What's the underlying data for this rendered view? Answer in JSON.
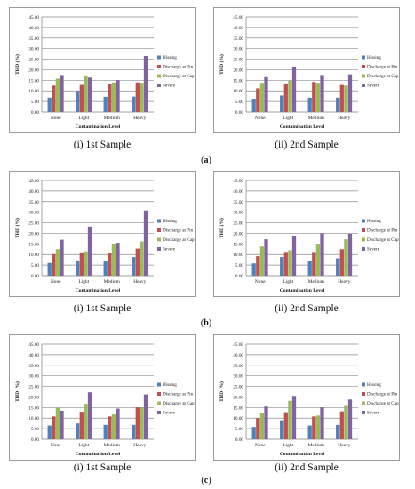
{
  "legend": {
    "labels": [
      "Hissing",
      "Discharge at Pin",
      "Discharge at Cap",
      "Severe"
    ],
    "colors": [
      "#4f81bd",
      "#c0504d",
      "#9bbb59",
      "#8064a2"
    ]
  },
  "rows": [
    {
      "letter": "a",
      "captions": [
        "(i) 1st Sample",
        "(ii) 2nd Sample"
      ]
    },
    {
      "letter": "b",
      "captions": [
        "(i) 1st Sample",
        "(ii) 2nd Sample"
      ]
    },
    {
      "letter": "c",
      "captions": [
        "(i) 1st Sample",
        "(ii) 2nd Sample"
      ]
    }
  ],
  "chart_data": [
    {
      "id": "a-i",
      "type": "bar",
      "ylabel": "THD (%)",
      "xlabel": "Contamination Level",
      "categories": [
        "None",
        "Light",
        "Medium",
        "Heavy"
      ],
      "ylim": [
        0,
        45
      ],
      "yticks": [
        "0.00",
        "5.00",
        "10.00",
        "15.00",
        "20.00",
        "25.00",
        "30.00",
        "35.00",
        "40.00",
        "45.00"
      ],
      "grid": true,
      "legend_position": "right",
      "series": [
        {
          "name": "Hissing",
          "values": [
            6.8,
            10.0,
            7.2,
            7.3
          ]
        },
        {
          "name": "Discharge at Pin",
          "values": [
            12.5,
            12.8,
            13.2,
            14.0
          ]
        },
        {
          "name": "Discharge at Cap",
          "values": [
            15.8,
            17.3,
            14.0,
            13.8
          ]
        },
        {
          "name": "Severe",
          "values": [
            17.5,
            16.3,
            15.0,
            26.5
          ]
        }
      ]
    },
    {
      "id": "a-ii",
      "type": "bar",
      "ylabel": "THD (%)",
      "xlabel": "Contamination Level",
      "categories": [
        "None",
        "Light",
        "Medium",
        "Heavy"
      ],
      "ylim": [
        0,
        45
      ],
      "yticks": [
        "0.00",
        "5.00",
        "10.00",
        "15.00",
        "20.00",
        "25.00",
        "30.00",
        "35.00",
        "40.00",
        "45.00"
      ],
      "grid": true,
      "legend_position": "right",
      "series": [
        {
          "name": "Hissing",
          "values": [
            6.3,
            7.8,
            6.8,
            6.8
          ]
        },
        {
          "name": "Discharge at Pin",
          "values": [
            11.2,
            13.5,
            14.2,
            12.8
          ]
        },
        {
          "name": "Discharge at Cap",
          "values": [
            13.8,
            14.8,
            13.8,
            12.5
          ]
        },
        {
          "name": "Severe",
          "values": [
            16.5,
            21.5,
            17.5,
            17.8
          ]
        }
      ]
    },
    {
      "id": "b-i",
      "type": "bar",
      "ylabel": "THD (%)",
      "xlabel": "Contamination Level",
      "categories": [
        "None",
        "Light",
        "Medium",
        "Heavy"
      ],
      "ylim": [
        0,
        45
      ],
      "yticks": [
        "0.00",
        "5.00",
        "10.00",
        "15.00",
        "20.00",
        "25.00",
        "30.00",
        "35.00",
        "40.00",
        "45.00"
      ],
      "grid": true,
      "legend_position": "right",
      "series": [
        {
          "name": "Hissing",
          "values": [
            6.0,
            7.2,
            6.8,
            8.8
          ]
        },
        {
          "name": "Discharge at Pin",
          "values": [
            10.2,
            11.0,
            10.8,
            12.8
          ]
        },
        {
          "name": "Discharge at Cap",
          "values": [
            12.5,
            11.5,
            14.8,
            16.2
          ]
        },
        {
          "name": "Severe",
          "values": [
            17.0,
            23.2,
            15.5,
            30.8
          ]
        }
      ]
    },
    {
      "id": "b-ii",
      "type": "bar",
      "ylabel": "THD (%)",
      "xlabel": "Contamination Level",
      "categories": [
        "None",
        "Light",
        "Medium",
        "Heavy"
      ],
      "ylim": [
        0,
        45
      ],
      "yticks": [
        "0.00",
        "5.00",
        "10.00",
        "15.00",
        "20.00",
        "25.00",
        "30.00",
        "35.00",
        "40.00",
        "45.00"
      ],
      "grid": true,
      "legend_position": "right",
      "series": [
        {
          "name": "Hissing",
          "values": [
            5.8,
            8.8,
            6.8,
            8.2
          ]
        },
        {
          "name": "Discharge at Pin",
          "values": [
            9.2,
            11.2,
            11.2,
            12.5
          ]
        },
        {
          "name": "Discharge at Cap",
          "values": [
            13.8,
            12.0,
            15.0,
            17.2
          ]
        },
        {
          "name": "Severe",
          "values": [
            17.2,
            18.8,
            20.0,
            19.8
          ]
        }
      ]
    },
    {
      "id": "c-i",
      "type": "bar",
      "ylabel": "THD (%)",
      "xlabel": "Contamination Level",
      "categories": [
        "None",
        "Light",
        "Medium",
        "Heavy"
      ],
      "ylim": [
        0,
        45
      ],
      "yticks": [
        "0.00",
        "5.00",
        "10.00",
        "15.00",
        "20.00",
        "25.00",
        "30.00",
        "35.00",
        "40.00",
        "45.00"
      ],
      "grid": true,
      "legend_position": "right",
      "series": [
        {
          "name": "Hissing",
          "values": [
            6.5,
            7.5,
            6.8,
            6.8
          ]
        },
        {
          "name": "Discharge at Pin",
          "values": [
            10.8,
            13.0,
            10.8,
            15.0
          ]
        },
        {
          "name": "Discharge at Cap",
          "values": [
            14.8,
            16.8,
            11.8,
            15.0
          ]
        },
        {
          "name": "Severe",
          "values": [
            13.5,
            22.2,
            14.5,
            21.2
          ]
        }
      ]
    },
    {
      "id": "c-ii",
      "type": "bar",
      "ylabel": "THD (%)",
      "xlabel": "Contamination Level",
      "categories": [
        "None",
        "Light",
        "Medium",
        "Heavy"
      ],
      "ylim": [
        0,
        45
      ],
      "yticks": [
        "0.00",
        "5.00",
        "10.00",
        "15.00",
        "20.00",
        "25.00",
        "30.00",
        "35.00",
        "40.00",
        "45.00"
      ],
      "grid": true,
      "legend_position": "right",
      "series": [
        {
          "name": "Hissing",
          "values": [
            5.8,
            9.0,
            6.5,
            6.8
          ]
        },
        {
          "name": "Discharge at Pin",
          "values": [
            10.0,
            12.8,
            10.8,
            13.2
          ]
        },
        {
          "name": "Discharge at Cap",
          "values": [
            12.5,
            18.2,
            11.2,
            15.8
          ]
        },
        {
          "name": "Severe",
          "values": [
            15.5,
            20.5,
            15.0,
            18.8
          ]
        }
      ]
    }
  ]
}
